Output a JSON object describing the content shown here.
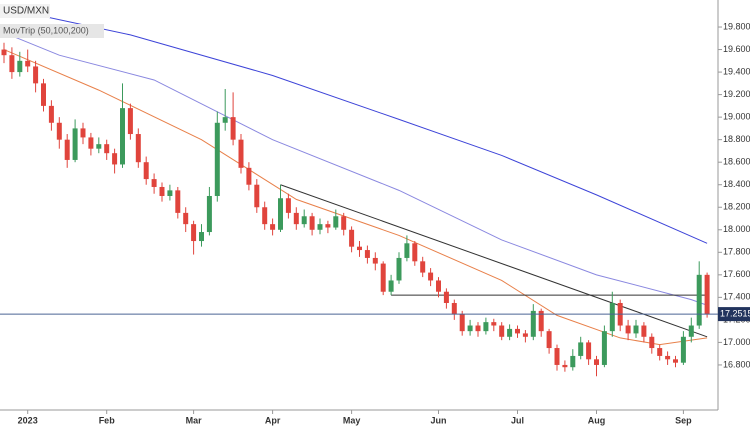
{
  "chart_data": {
    "type": "candlestick",
    "title": "USD/MXN",
    "up_color": "#3c9a5c",
    "down_color": "#e0443c",
    "categories": [
      null,
      null,
      null,
      "2023",
      null,
      null,
      null,
      null,
      null,
      null,
      null,
      null,
      null,
      "Feb",
      null,
      null,
      null,
      null,
      null,
      null,
      null,
      null,
      null,
      null,
      "Mar",
      null,
      null,
      null,
      null,
      null,
      null,
      null,
      null,
      null,
      "Apr",
      null,
      null,
      null,
      null,
      null,
      null,
      null,
      null,
      null,
      "May",
      null,
      null,
      null,
      null,
      null,
      null,
      null,
      null,
      null,
      null,
      "Jun",
      null,
      null,
      null,
      null,
      null,
      null,
      null,
      null,
      null,
      "Jul",
      null,
      null,
      null,
      null,
      null,
      null,
      null,
      null,
      null,
      "Aug",
      null,
      null,
      null,
      null,
      null,
      null,
      null,
      null,
      null,
      null,
      "Sep",
      null,
      null,
      null
    ],
    "open": [
      19.6,
      19.55,
      19.4,
      19.5,
      19.45,
      19.3,
      19.1,
      18.95,
      18.8,
      18.62,
      18.9,
      18.82,
      18.72,
      18.76,
      18.68,
      18.58,
      19.08,
      18.85,
      18.6,
      18.45,
      18.38,
      18.3,
      18.35,
      18.15,
      18.05,
      17.9,
      17.98,
      18.3,
      18.95,
      19.0,
      18.8,
      18.55,
      18.4,
      18.2,
      18.05,
      18.0,
      18.28,
      18.15,
      18.05,
      18.12,
      18.0,
      18.05,
      18.02,
      18.12,
      18.0,
      17.85,
      17.82,
      17.75,
      17.7,
      17.45,
      17.55,
      17.75,
      17.88,
      17.72,
      17.62,
      17.55,
      17.45,
      17.35,
      17.25,
      17.1,
      17.15,
      17.1,
      17.18,
      17.15,
      17.05,
      17.12,
      17.08,
      17.05,
      17.28,
      17.1,
      16.95,
      16.8,
      16.78,
      16.88,
      17.0,
      16.85,
      16.8,
      17.1,
      17.35,
      17.15,
      17.08,
      17.15,
      17.05,
      16.95,
      16.88,
      16.85,
      16.82,
      17.05,
      17.15,
      17.6
    ],
    "high": [
      19.66,
      19.62,
      19.58,
      19.6,
      19.5,
      19.34,
      19.15,
      19.0,
      18.85,
      18.98,
      18.95,
      18.86,
      18.82,
      18.8,
      18.72,
      19.3,
      19.12,
      18.9,
      18.65,
      18.5,
      18.42,
      18.4,
      18.38,
      18.2,
      18.08,
      18.05,
      18.38,
      19.05,
      19.25,
      19.22,
      18.85,
      18.6,
      18.45,
      18.25,
      18.1,
      18.4,
      18.32,
      18.2,
      18.18,
      18.15,
      18.1,
      18.08,
      18.18,
      18.15,
      18.03,
      17.9,
      17.86,
      17.8,
      17.72,
      17.6,
      17.8,
      17.95,
      17.9,
      17.76,
      17.66,
      17.58,
      17.48,
      17.38,
      17.28,
      17.2,
      17.18,
      17.22,
      17.21,
      17.18,
      17.16,
      17.15,
      17.11,
      17.34,
      17.3,
      17.12,
      16.98,
      16.84,
      16.94,
      17.05,
      17.02,
      16.88,
      17.15,
      17.45,
      17.38,
      17.2,
      17.2,
      17.18,
      17.08,
      16.98,
      16.92,
      16.88,
      17.1,
      17.22,
      17.72,
      17.62
    ],
    "low": [
      19.48,
      19.34,
      19.36,
      19.4,
      19.22,
      19.05,
      18.88,
      18.72,
      18.55,
      18.6,
      18.76,
      18.66,
      18.68,
      18.62,
      18.5,
      18.55,
      18.8,
      18.55,
      18.4,
      18.32,
      18.25,
      18.26,
      18.1,
      17.98,
      17.78,
      17.85,
      17.95,
      18.25,
      18.88,
      18.75,
      18.5,
      18.35,
      18.15,
      18.0,
      17.95,
      17.98,
      18.1,
      18.0,
      18.02,
      17.95,
      17.96,
      17.97,
      18.0,
      17.95,
      17.8,
      17.76,
      17.7,
      17.64,
      17.42,
      17.42,
      17.52,
      17.72,
      17.68,
      17.58,
      17.5,
      17.4,
      17.3,
      17.2,
      17.06,
      17.06,
      17.05,
      17.07,
      17.1,
      17.02,
      17.02,
      17.04,
      17.0,
      17.02,
      17.05,
      16.9,
      16.75,
      16.74,
      16.75,
      16.85,
      16.8,
      16.7,
      16.78,
      17.05,
      17.1,
      17.02,
      17.04,
      17.0,
      16.9,
      16.84,
      16.8,
      16.78,
      16.8,
      17.0,
      17.12,
      17.22
    ],
    "close": [
      19.55,
      19.4,
      19.5,
      19.45,
      19.3,
      19.1,
      18.95,
      18.8,
      18.62,
      18.9,
      18.82,
      18.72,
      18.76,
      18.68,
      18.58,
      19.08,
      18.85,
      18.6,
      18.45,
      18.38,
      18.3,
      18.35,
      18.15,
      18.05,
      17.9,
      17.98,
      18.3,
      18.95,
      19.0,
      18.8,
      18.55,
      18.4,
      18.2,
      18.05,
      18.0,
      18.28,
      18.15,
      18.05,
      18.12,
      18.0,
      18.05,
      18.02,
      18.12,
      18.0,
      17.85,
      17.82,
      17.75,
      17.7,
      17.45,
      17.55,
      17.75,
      17.88,
      17.72,
      17.62,
      17.55,
      17.45,
      17.35,
      17.25,
      17.1,
      17.15,
      17.1,
      17.18,
      17.15,
      17.05,
      17.12,
      17.08,
      17.05,
      17.28,
      17.1,
      16.95,
      16.8,
      16.78,
      16.88,
      17.0,
      16.85,
      16.8,
      17.1,
      17.35,
      17.15,
      17.08,
      17.15,
      17.05,
      16.95,
      16.88,
      16.85,
      16.82,
      17.05,
      17.15,
      17.6,
      17.2515
    ],
    "moving_averages": {
      "label": "MovTrip (50,100,200)",
      "lines": [
        {
          "color": "#e8804a",
          "x": [
            0,
            12,
            25,
            37,
            50,
            63,
            70,
            78,
            83,
            89
          ],
          "values": [
            19.6,
            19.24,
            18.8,
            18.27,
            17.95,
            17.55,
            17.24,
            17.04,
            16.98,
            17.04
          ]
        },
        {
          "color": "#8a88e0",
          "x": [
            0,
            7,
            19,
            34,
            50,
            63,
            75,
            87,
            89
          ],
          "values": [
            19.75,
            19.55,
            19.33,
            18.8,
            18.35,
            17.91,
            17.6,
            17.38,
            17.33
          ]
        },
        {
          "color": "#3d44d8",
          "x": [
            0,
            16,
            34,
            50,
            63,
            75,
            89
          ],
          "values": [
            19.97,
            19.73,
            19.37,
            18.98,
            18.66,
            18.31,
            17.88
          ]
        }
      ]
    },
    "trendlines": [
      {
        "color": "#333333",
        "x": [
          35,
          89
        ],
        "values": [
          18.4,
          17.05
        ]
      },
      {
        "color": "#333333",
        "x": [
          49,
          89
        ],
        "values": [
          17.42,
          17.42
        ]
      }
    ],
    "last_price": 17.2515,
    "ylim": [
      16.4,
      20.04
    ],
    "yticks": [
      {
        "value": 16.8,
        "label": "16.8000"
      },
      {
        "value": 17.0,
        "label": "17.0000"
      },
      {
        "value": 17.2,
        "label": "17.2000"
      },
      {
        "value": 17.4,
        "label": "17.4000"
      },
      {
        "value": 17.6,
        "label": "17.6000"
      },
      {
        "value": 17.8,
        "label": "17.8000"
      },
      {
        "value": 18.0,
        "label": "18.0000"
      },
      {
        "value": 18.2,
        "label": "18.2000"
      },
      {
        "value": 18.4,
        "label": "18.4000"
      },
      {
        "value": 18.6,
        "label": "18.6000"
      },
      {
        "value": 18.8,
        "label": "18.8000"
      },
      {
        "value": 19.0,
        "label": "19.0000"
      },
      {
        "value": 19.2,
        "label": "19.2000"
      },
      {
        "value": 19.4,
        "label": "19.4000"
      },
      {
        "value": 19.6,
        "label": "19.6000"
      },
      {
        "value": 19.8,
        "label": "19.8000"
      }
    ],
    "grid": false
  }
}
